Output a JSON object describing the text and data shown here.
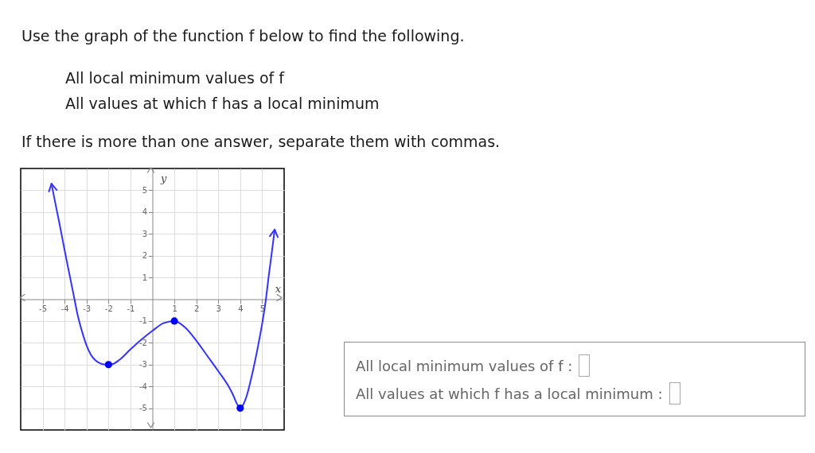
{
  "chart_data": {
    "type": "line",
    "title": "Use the graph of the function f below to find the following.",
    "annotations": [
      "All local minimum values of f",
      "All values at which f has a local minimum",
      "If there is more than one answer, separate them with commas.",
      "All local minimum values of f :",
      "All values at which f has a local minimum :"
    ],
    "xlabel": "x",
    "ylabel": "y",
    "series": [
      {
        "color": "#3333ff",
        "x": [
          -4.6,
          -4.4,
          -4.2,
          -4.0,
          -3.8,
          -3.6,
          -3.4,
          -3.2,
          -3.0,
          -2.8,
          -2.6,
          -2.4,
          -2.2,
          -2.0,
          -1.8,
          -1.5,
          -1.0,
          -0.5,
          0,
          0.5,
          1.0,
          1.5,
          2.0,
          2.5,
          3.0,
          3.5,
          3.7,
          3.85,
          4.0,
          4.1,
          4.2,
          4.3,
          4.4,
          4.52,
          4.64,
          4.84,
          5.02,
          5.17,
          5.29,
          5.42,
          5.57
        ],
        "values": [
          5.3,
          4.3,
          3.3,
          2.25,
          1.25,
          0.25,
          -0.75,
          -1.5,
          -2.12,
          -2.55,
          -2.8,
          -2.93,
          -2.99,
          -3,
          -2.97,
          -2.78,
          -2.3,
          -1.85,
          -1.45,
          -1.1,
          -1,
          -1.3,
          -1.9,
          -2.6,
          -3.3,
          -4.05,
          -4.45,
          -4.8,
          -5,
          -4.9,
          -4.7,
          -4.42,
          -4.05,
          -3.55,
          -3,
          -2,
          -1,
          0,
          1,
          2,
          3.2
        ]
      },
      {
        "type": "scatter",
        "color": "#0000ff",
        "marker": "circle",
        "x": [
          -2,
          1,
          4
        ],
        "values": [
          -3,
          -1,
          -5
        ]
      }
    ],
    "xlim": [
      -6,
      6
    ],
    "ylim": [
      -6,
      6
    ],
    "xticks": [
      -5,
      -4,
      -3,
      -2,
      -1,
      1,
      2,
      3,
      4,
      5
    ],
    "yticks": [
      -5,
      -4,
      -3,
      -2,
      -1,
      1,
      2,
      3,
      4,
      5
    ],
    "grid": true
  }
}
